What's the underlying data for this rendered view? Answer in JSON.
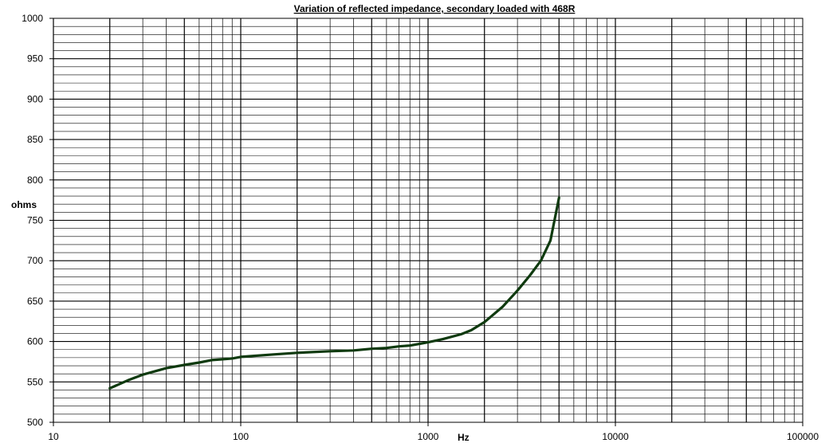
{
  "chart_data": {
    "type": "line",
    "title": "Variation of reflected impedance, secondary loaded with 468R",
    "xlabel": "Hz",
    "ylabel": "ohms",
    "x_scale": "log",
    "xlim": [
      10,
      100000
    ],
    "ylim": [
      500,
      1000
    ],
    "x_ticks": [
      "10",
      "100",
      "1000",
      "10000",
      "100000"
    ],
    "y_ticks": [
      "500",
      "550",
      "600",
      "650",
      "700",
      "750",
      "800",
      "850",
      "900",
      "950",
      "1000"
    ],
    "grid": true,
    "legend": "none",
    "series": [
      {
        "color": "#0f3a0f",
        "points": [
          [
            20,
            542
          ],
          [
            25,
            552
          ],
          [
            30,
            559
          ],
          [
            40,
            567
          ],
          [
            50,
            571
          ],
          [
            60,
            574
          ],
          [
            70,
            577
          ],
          [
            80,
            578
          ],
          [
            90,
            579
          ],
          [
            100,
            581
          ],
          [
            150,
            584
          ],
          [
            200,
            586
          ],
          [
            300,
            588
          ],
          [
            400,
            589
          ],
          [
            500,
            591
          ],
          [
            600,
            592
          ],
          [
            700,
            594
          ],
          [
            800,
            595
          ],
          [
            900,
            597
          ],
          [
            1000,
            599
          ],
          [
            1200,
            603
          ],
          [
            1500,
            609
          ],
          [
            1700,
            614
          ],
          [
            2000,
            624
          ],
          [
            2500,
            643
          ],
          [
            3000,
            663
          ],
          [
            3500,
            682
          ],
          [
            4000,
            700
          ],
          [
            4500,
            725
          ],
          [
            5000,
            778
          ]
        ]
      }
    ]
  }
}
